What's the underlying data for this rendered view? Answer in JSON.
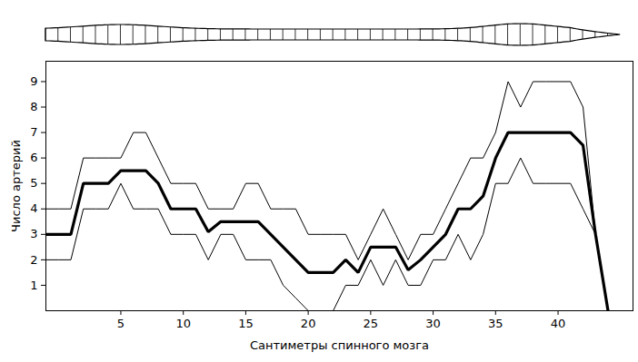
{
  "chart_data": {
    "type": "line",
    "x_label": "Сантиметры спинного мозга",
    "y_label": "Число артерий",
    "x": [
      -1,
      0,
      1,
      2,
      3,
      4,
      5,
      6,
      7,
      8,
      9,
      10,
      11,
      12,
      13,
      14,
      15,
      16,
      17,
      18,
      19,
      20,
      21,
      22,
      23,
      24,
      25,
      26,
      27,
      28,
      29,
      30,
      31,
      32,
      33,
      34,
      35,
      36,
      37,
      38,
      39,
      40,
      41,
      42,
      43,
      44
    ],
    "series": [
      {
        "color": "#000000",
        "line_style": "solid",
        "values": [
          4,
          4,
          4,
          6,
          6,
          6,
          6,
          7,
          7,
          6,
          5,
          5,
          5,
          4,
          4,
          4,
          5,
          5,
          4,
          4,
          4,
          3,
          3,
          3,
          3,
          2,
          3,
          4,
          3,
          2,
          3,
          3,
          4,
          5,
          6,
          6,
          7,
          9,
          8,
          9,
          9,
          9,
          9,
          8,
          3,
          null
        ]
      },
      {
        "color": "#000000",
        "line_style": "bold",
        "values": [
          3,
          3,
          3,
          5,
          5,
          5,
          5.5,
          5.5,
          5.5,
          5,
          4,
          4,
          4,
          3.1,
          3.5,
          3.5,
          3.5,
          3.5,
          3,
          2.5,
          2,
          1.5,
          1.5,
          1.5,
          2,
          1.5,
          2.5,
          2.5,
          2.5,
          1.6,
          2,
          2.5,
          3,
          4,
          4,
          4.5,
          6,
          7,
          7,
          7,
          7,
          7,
          7,
          6.5,
          3,
          0
        ]
      },
      {
        "color": "#000000",
        "line_style": "solid",
        "values": [
          2,
          2,
          2,
          4,
          4,
          4,
          5,
          4,
          4,
          4,
          3,
          3,
          3,
          2,
          3,
          3,
          2,
          2,
          2,
          1,
          0.5,
          0,
          0,
          0,
          1,
          1,
          2,
          1,
          2,
          1,
          1,
          2,
          2,
          3,
          2,
          3,
          5,
          5,
          6,
          5,
          5,
          5,
          5,
          4,
          3,
          null
        ]
      }
    ],
    "xlim": [
      -1,
      46
    ],
    "xticks": [
      5,
      10,
      15,
      20,
      25,
      30,
      35,
      40
    ],
    "ylim": [
      0,
      9.8
    ],
    "yticks": [
      1,
      2,
      3,
      4,
      5,
      6,
      7,
      8,
      9
    ],
    "grid": false
  }
}
